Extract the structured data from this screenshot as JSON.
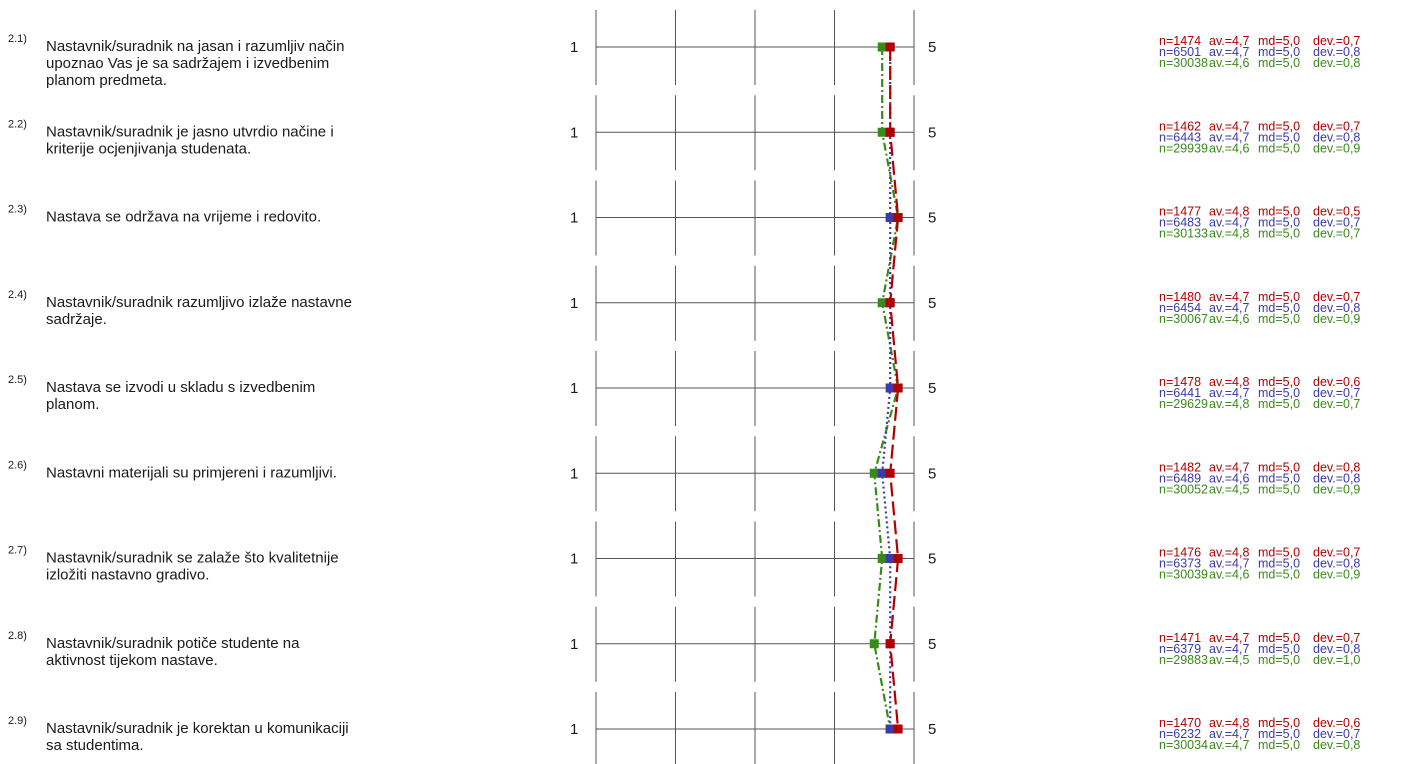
{
  "chart_data": {
    "type": "line",
    "orientation": "horizontal-profile",
    "x_axis": {
      "min": 1,
      "max": 5,
      "min_label": "1",
      "max_label": "5"
    },
    "colors": {
      "series1": "#b00000",
      "series2": "#3a3aa8",
      "series3": "#3a8a1a"
    },
    "series": [
      {
        "line_style": "long-dash",
        "values": [
          4.7,
          4.7,
          4.8,
          4.7,
          4.8,
          4.7,
          4.8,
          4.7,
          4.8
        ]
      },
      {
        "line_style": "dotted",
        "values": [
          4.7,
          4.7,
          4.7,
          4.7,
          4.7,
          4.6,
          4.7,
          4.7,
          4.7
        ]
      },
      {
        "line_style": "dash-dot",
        "values": [
          4.6,
          4.6,
          4.8,
          4.6,
          4.8,
          4.5,
          4.6,
          4.5,
          4.7
        ]
      }
    ],
    "questions": [
      {
        "num": "2.1)",
        "lines": [
          "Nastavnik/suradnik na jasan i razumljiv način",
          "upoznao Vas je sa sadržajem i izvedbenim",
          "planom predmeta."
        ],
        "stats": [
          {
            "n": "n=1474",
            "av": "av.=4,7",
            "md": "md=5,0",
            "dev": "dev.=0,7"
          },
          {
            "n": "n=6501",
            "av": "av.=4,7",
            "md": "md=5,0",
            "dev": "dev.=0,8"
          },
          {
            "n": "n=30038",
            "av": "av.=4,6",
            "md": "md=5,0",
            "dev": "dev.=0,8"
          }
        ]
      },
      {
        "num": "2.2)",
        "lines": [
          "Nastavnik/suradnik je jasno utvrdio načine i",
          "kriterije ocjenjivanja  studenata."
        ],
        "stats": [
          {
            "n": "n=1462",
            "av": "av.=4,7",
            "md": "md=5,0",
            "dev": "dev.=0,7"
          },
          {
            "n": "n=6443",
            "av": "av.=4,7",
            "md": "md=5,0",
            "dev": "dev.=0,8"
          },
          {
            "n": "n=29939",
            "av": "av.=4,6",
            "md": "md=5,0",
            "dev": "dev.=0,9"
          }
        ]
      },
      {
        "num": "2.3)",
        "lines": [
          "Nastava se održava na vrijeme i redovito."
        ],
        "stats": [
          {
            "n": "n=1477",
            "av": "av.=4,8",
            "md": "md=5,0",
            "dev": "dev.=0,5"
          },
          {
            "n": "n=6483",
            "av": "av.=4,7",
            "md": "md=5,0",
            "dev": "dev.=0,7"
          },
          {
            "n": "n=30133",
            "av": "av.=4,8",
            "md": "md=5,0",
            "dev": "dev.=0,7"
          }
        ]
      },
      {
        "num": "2.4)",
        "lines": [
          "Nastavnik/suradnik razumljivo izlaže nastavne",
          "sadržaje."
        ],
        "stats": [
          {
            "n": "n=1480",
            "av": "av.=4,7",
            "md": "md=5,0",
            "dev": "dev.=0,7"
          },
          {
            "n": "n=6454",
            "av": "av.=4,7",
            "md": "md=5,0",
            "dev": "dev.=0,8"
          },
          {
            "n": "n=30067",
            "av": "av.=4,6",
            "md": "md=5,0",
            "dev": "dev.=0,9"
          }
        ]
      },
      {
        "num": "2.5)",
        "lines": [
          "Nastava se izvodi u skladu s izvedbenim",
          "planom."
        ],
        "stats": [
          {
            "n": "n=1478",
            "av": "av.=4,8",
            "md": "md=5,0",
            "dev": "dev.=0,6"
          },
          {
            "n": "n=6441",
            "av": "av.=4,7",
            "md": "md=5,0",
            "dev": "dev.=0,7"
          },
          {
            "n": "n=29629",
            "av": "av.=4,8",
            "md": "md=5,0",
            "dev": "dev.=0,7"
          }
        ]
      },
      {
        "num": "2.6)",
        "lines": [
          "Nastavni materijali su primjereni i razumljivi."
        ],
        "stats": [
          {
            "n": "n=1482",
            "av": "av.=4,7",
            "md": "md=5,0",
            "dev": "dev.=0,8"
          },
          {
            "n": "n=6489",
            "av": "av.=4,6",
            "md": "md=5,0",
            "dev": "dev.=0,8"
          },
          {
            "n": "n=30052",
            "av": "av.=4,5",
            "md": "md=5,0",
            "dev": "dev.=0,9"
          }
        ]
      },
      {
        "num": "2.7)",
        "lines": [
          "Nastavnik/suradnik se zalaže što kvalitetnije",
          "izložiti nastavno gradivo."
        ],
        "stats": [
          {
            "n": "n=1476",
            "av": "av.=4,8",
            "md": "md=5,0",
            "dev": "dev.=0,7"
          },
          {
            "n": "n=6373",
            "av": "av.=4,7",
            "md": "md=5,0",
            "dev": "dev.=0,8"
          },
          {
            "n": "n=30039",
            "av": "av.=4,6",
            "md": "md=5,0",
            "dev": "dev.=0,9"
          }
        ]
      },
      {
        "num": "2.8)",
        "lines": [
          "Nastavnik/suradnik potiče studente na",
          "aktivnost tijekom nastave."
        ],
        "stats": [
          {
            "n": "n=1471",
            "av": "av.=4,7",
            "md": "md=5,0",
            "dev": "dev.=0,7"
          },
          {
            "n": "n=6379",
            "av": "av.=4,7",
            "md": "md=5,0",
            "dev": "dev.=0,8"
          },
          {
            "n": "n=29883",
            "av": "av.=4,5",
            "md": "md=5,0",
            "dev": "dev.=1,0"
          }
        ]
      },
      {
        "num": "2.9)",
        "lines": [
          "Nastavnik/suradnik je korektan u komunikaciji",
          "sa studentima."
        ],
        "stats": [
          {
            "n": "n=1470",
            "av": "av.=4,8",
            "md": "md=5,0",
            "dev": "dev.=0,6"
          },
          {
            "n": "n=6232",
            "av": "av.=4,7",
            "md": "md=5,0",
            "dev": "dev.=0,7"
          },
          {
            "n": "n=30034",
            "av": "av.=4,7",
            "md": "md=5,0",
            "dev": "dev.=0,8"
          }
        ]
      }
    ]
  }
}
